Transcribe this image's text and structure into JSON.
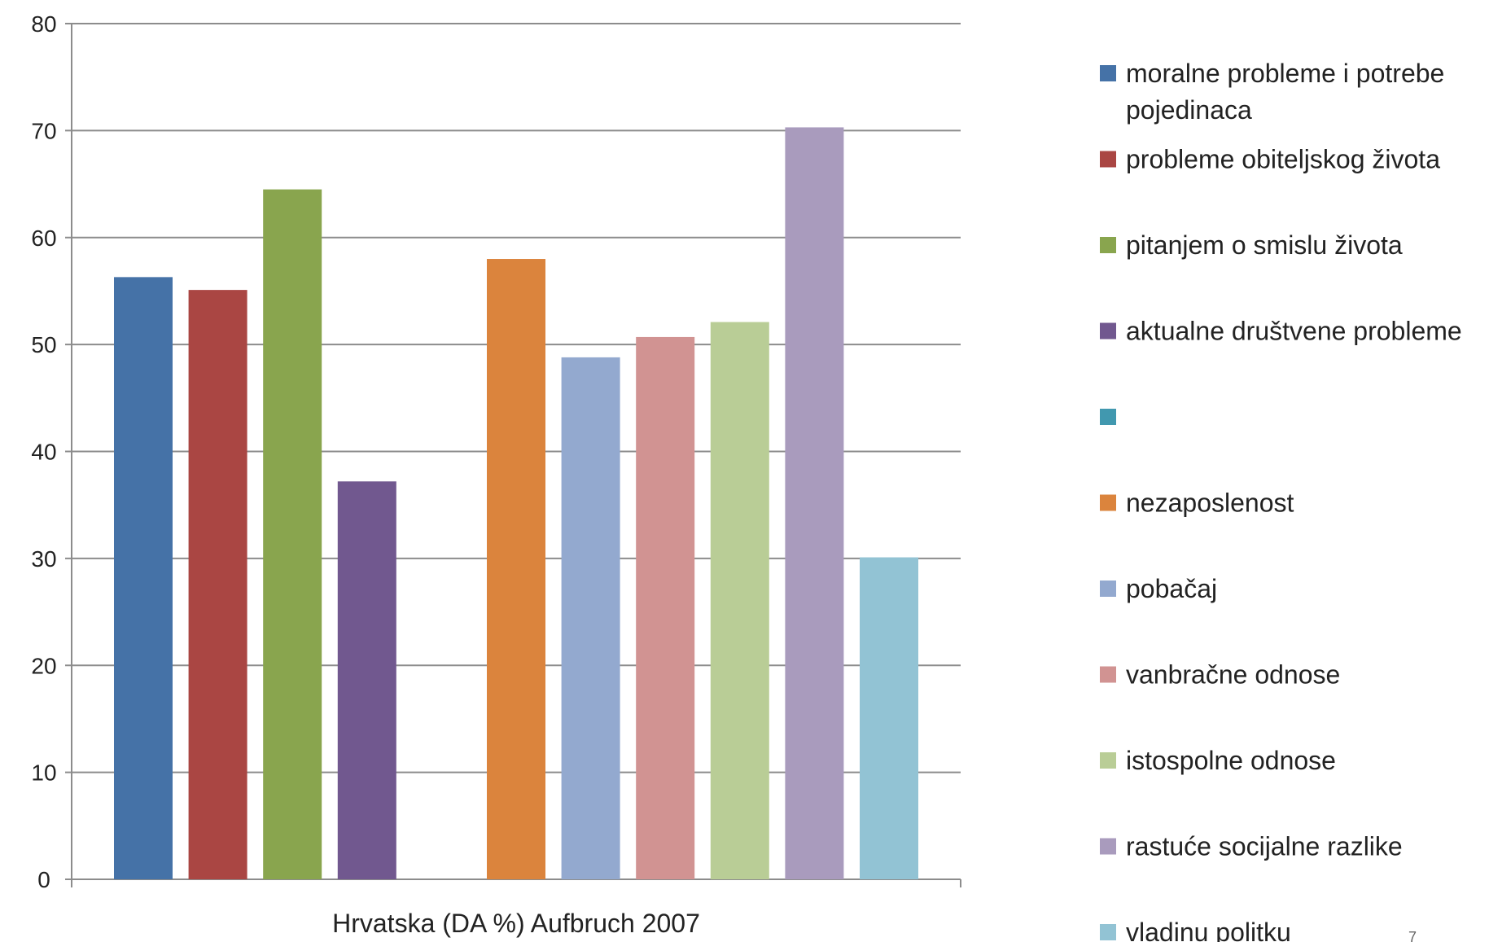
{
  "chart_data": {
    "type": "bar",
    "categories": [
      "Hrvatska (DA %) Aufbruch 2007"
    ],
    "ylim": [
      0,
      80
    ],
    "yticks": [
      0,
      10,
      20,
      30,
      40,
      50,
      60,
      70,
      80
    ],
    "grid": true,
    "legend_position": "right",
    "series": [
      {
        "name": "moralne probleme i potrebe pojedinaca",
        "values": [
          56.3
        ],
        "color": "#4572a7"
      },
      {
        "name": "probleme obiteljskog života",
        "values": [
          55.1
        ],
        "color": "#aa4643"
      },
      {
        "name": "pitanjem o smislu života",
        "values": [
          64.5
        ],
        "color": "#89a54e"
      },
      {
        "name": "aktualne društvene probleme",
        "values": [
          37.2
        ],
        "color": "#71588f"
      },
      {
        "name": "",
        "values": [
          null
        ],
        "color": "#4198af"
      },
      {
        "name": "nezaposlenost",
        "values": [
          58.0
        ],
        "color": "#db843d"
      },
      {
        "name": "pobačaj",
        "values": [
          48.8
        ],
        "color": "#93a9cf"
      },
      {
        "name": "vanbračne odnose",
        "values": [
          50.7
        ],
        "color": "#d19392"
      },
      {
        "name": "istospolne odnose",
        "values": [
          52.1
        ],
        "color": "#b9cd96"
      },
      {
        "name": "rastuće socijalne razlike",
        "values": [
          70.3
        ],
        "color": "#a99bbd"
      },
      {
        "name": "vladinu politku",
        "values": [
          30.1
        ],
        "color": "#92c3d4"
      }
    ]
  },
  "page": {
    "number": "7"
  }
}
